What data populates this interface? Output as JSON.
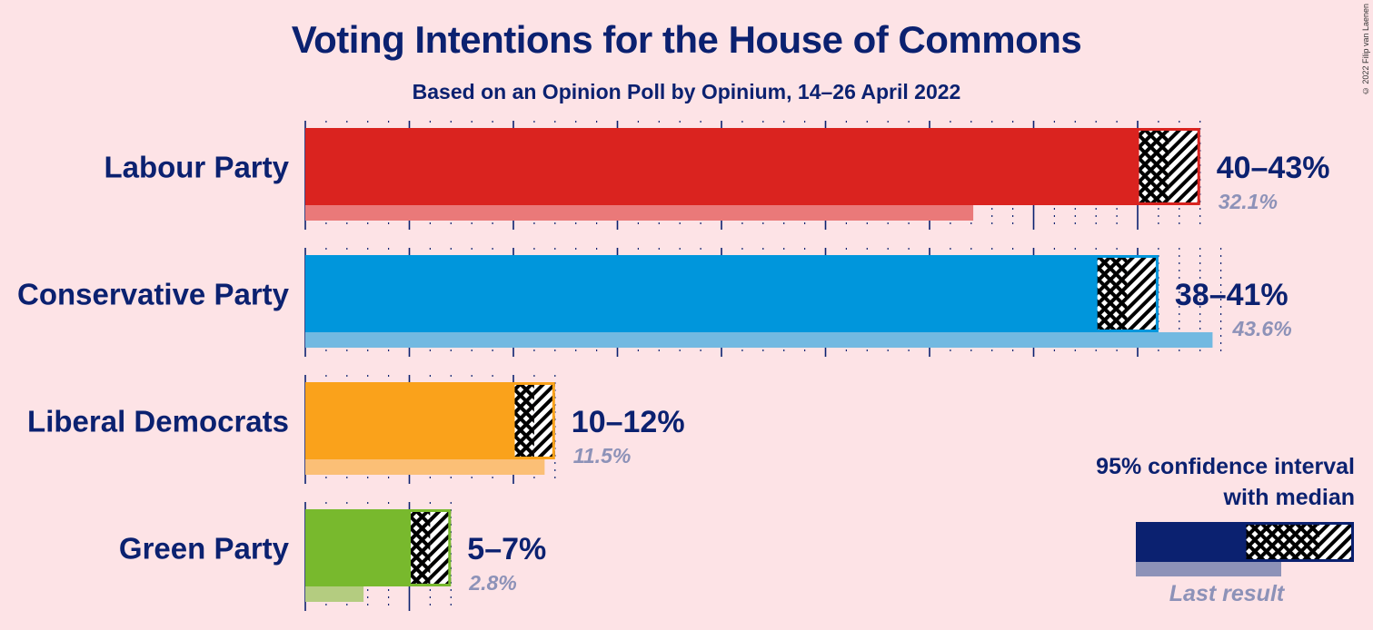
{
  "title": "Voting Intentions for the House of Commons",
  "subtitle": "Based on an Opinion Poll by Opinium, 14–26 April 2022",
  "copyright": "© 2022 Filip van Laenen",
  "legend": {
    "title_line1": "95% confidence interval",
    "title_line2": "with median",
    "last_result": "Last result",
    "color": "#0b2170"
  },
  "chart_data": {
    "type": "bar",
    "orientation": "horizontal",
    "categories": [
      "Labour Party",
      "Conservative Party",
      "Liberal Democrats",
      "Green Party"
    ],
    "series": [
      {
        "name": "95% confidence interval",
        "low": [
          40,
          38,
          10,
          5
        ],
        "median": [
          41.5,
          39.5,
          11,
          6
        ],
        "high": [
          43,
          41,
          12,
          7
        ]
      },
      {
        "name": "Last result",
        "values": [
          32.1,
          43.6,
          11.5,
          2.8
        ]
      }
    ],
    "range_labels": [
      "40–43%",
      "38–41%",
      "10–12%",
      "5–7%"
    ],
    "last_labels": [
      "32.1%",
      "43.6%",
      "11.5%",
      "2.8%"
    ],
    "colors": [
      "#da231f",
      "#0096dc",
      "#faa21b",
      "#78b92d"
    ],
    "xlim": [
      0,
      44
    ],
    "grid": true
  }
}
